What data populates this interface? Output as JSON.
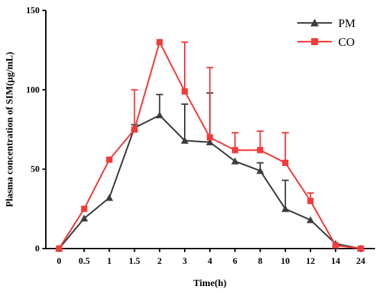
{
  "chart_data": {
    "type": "line",
    "xlabel": "Time(h)",
    "ylabel": "Plasma concentration of SIM(μg/mL)",
    "categories": [
      "0",
      "0.5",
      "1",
      "1.5",
      "2",
      "3",
      "4",
      "6",
      "8",
      "10",
      "12",
      "14",
      "24"
    ],
    "ylim": [
      0,
      150
    ],
    "yticks": [
      "0",
      "50",
      "100",
      "150"
    ],
    "grid": false,
    "legend_position": "top-right",
    "series": [
      {
        "name": "PM",
        "color": "#3d3d3d",
        "marker": "triangle",
        "values": [
          0,
          19,
          32,
          76,
          84,
          68,
          67,
          55,
          49,
          25,
          18,
          3,
          0
        ],
        "error_upper": [
          0,
          0,
          0,
          78,
          97,
          91,
          98,
          0,
          54,
          43,
          0,
          0,
          0
        ]
      },
      {
        "name": "CO",
        "color": "#f23b3b",
        "marker": "square",
        "values": [
          0,
          25,
          56,
          75,
          130,
          99,
          70,
          62,
          62,
          54,
          30,
          2,
          0
        ],
        "error_upper": [
          0,
          0,
          0,
          100,
          0,
          130,
          114,
          73,
          74,
          73,
          35,
          0,
          0
        ]
      }
    ]
  }
}
